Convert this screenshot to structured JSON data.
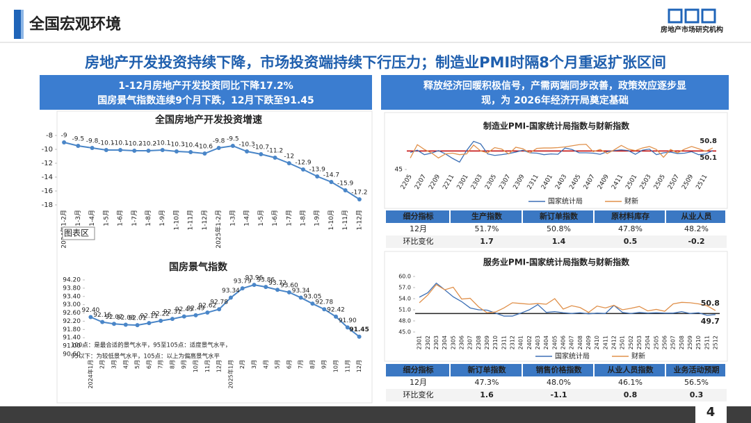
{
  "header": {
    "title": "全国宏观环境",
    "logo_text": "房地产市场研究机构"
  },
  "headline": "房地产开发投资持续下降，市场投资端持续下行压力；制造业PMI时隔8个月重返扩张区间",
  "left_banner": [
    "1-12月房地产开发投资同比下降17.2%",
    "国房景气指数连续9个月下跌，12月下跌至91.45"
  ],
  "right_banner": [
    "释放经济回暖积极信号，产需两端同步改善，政策效应逐步显",
    "现，为 2026年经济开局奠定基础"
  ],
  "chart_data": [
    {
      "type": "line",
      "title": "全国房地产开发投资增速",
      "categories": [
        "2024年1-2月",
        "1-3月",
        "1-4月",
        "1-5月",
        "1-6月",
        "1-7月",
        "1-8月",
        "1-9月",
        "1-10月",
        "1-11月",
        "1-12月",
        "2025年1-2月",
        "1-3月",
        "1-4月",
        "1-5月",
        "1-6月",
        "1-7月",
        "1-8月",
        "1-9月",
        "1-10月",
        "1-11月",
        "1-12月"
      ],
      "values": [
        -9,
        -9.5,
        -9.8,
        -10.1,
        -10.1,
        -10.2,
        -10.2,
        -10.1,
        -10.3,
        -10.4,
        -10.6,
        -9.8,
        -9.5,
        -10.3,
        -10.7,
        -11.2,
        -12,
        -12.9,
        -13.9,
        -14.7,
        -15.9,
        -17.2
      ],
      "color": "#4a86c8",
      "markers": true,
      "data_labels": "all",
      "label_color": "#333333",
      "ylim": [
        -18,
        -8
      ],
      "yticks": [
        -8,
        -10,
        -12,
        -14,
        -16,
        -18
      ],
      "annotations": [
        "图表区"
      ]
    },
    {
      "type": "line",
      "title": "国房景气指数",
      "categories": [
        "2024年1月",
        "2月",
        "3月",
        "4月",
        "5月",
        "6月",
        "7月",
        "8月",
        "9月",
        "10月",
        "11月",
        "12月",
        "2025年1月",
        "2月",
        "3月",
        "4月",
        "5月",
        "6月",
        "7月",
        "8月",
        "9月",
        "10月",
        "11月",
        "12月"
      ],
      "values": [
        92.4,
        92.16,
        92.07,
        92.03,
        92.01,
        92.11,
        92.22,
        92.31,
        92.43,
        92.49,
        92.62,
        92.78,
        93.34,
        93.79,
        93.96,
        93.86,
        93.72,
        93.6,
        93.34,
        93.05,
        92.78,
        92.42,
        91.9,
        91.45
      ],
      "value_labels": [
        "92.40",
        "92.16",
        "92.07",
        "92.03",
        "92.01",
        "92.11",
        "92.22",
        "92.31",
        "92.43",
        "92.49",
        "92.62",
        "92.78",
        "93.34",
        "93.79",
        "93.96",
        "93.86",
        "93.72",
        "93.60",
        "93.34",
        "93.05",
        "92.78",
        "92.42",
        "91.90",
        "91.45"
      ],
      "color": "#4a86c8",
      "markers": true,
      "data_labels": "all",
      "label_color": "#333333",
      "last_label_color": "#e00000",
      "ylim": [
        90.6,
        94.2
      ],
      "yticks": [
        {
          "value": 90.6,
          "label": "90.60"
        },
        {
          "value": 91.0,
          "label": "91.00"
        },
        {
          "value": 91.4,
          "label": "91.40"
        },
        {
          "value": 91.8,
          "label": "91.80"
        },
        {
          "value": 92.2,
          "label": "92.20"
        },
        {
          "value": 92.6,
          "label": "92.60"
        },
        {
          "value": 93.0,
          "label": "93.00"
        },
        {
          "value": 93.4,
          "label": "93.40"
        },
        {
          "value": 93.8,
          "label": "93.80"
        },
        {
          "value": 94.2,
          "label": "94.20"
        }
      ],
      "annotations": [
        "100点：是最合适的景气水平，95至105点：适度景气水平，",
        "95以下：为较低景气水平，105点：以上为偏高景气水平"
      ]
    },
    {
      "type": "line",
      "title": "制造业PMI-国家统计局指数与财新指数",
      "categories": [
        "2205",
        null,
        "2207",
        null,
        "2209",
        null,
        "2211",
        null,
        "2301",
        null,
        "2303",
        null,
        "2305",
        null,
        "2307",
        null,
        "2309",
        null,
        "2311",
        null,
        "2401",
        null,
        "2403",
        null,
        "2405",
        null,
        "2407",
        null,
        "2409",
        null,
        "2411",
        null,
        "2501",
        null,
        "2503",
        null,
        "2505",
        null,
        "2507",
        null,
        "2509",
        null,
        "2511",
        null
      ],
      "series": [
        {
          "name": "国家统计局",
          "color": "#3c6fb5",
          "values": [
            49.6,
            50.2,
            49.0,
            49.4,
            50.1,
            49.2,
            48.0,
            47.0,
            50.1,
            52.6,
            51.9,
            49.2,
            48.8,
            49.0,
            49.3,
            49.7,
            50.2,
            49.5,
            49.4,
            49.0,
            49.2,
            49.1,
            50.8,
            50.4,
            49.5,
            49.5,
            49.4,
            49.1,
            49.8,
            50.1,
            50.3,
            50.1,
            49.1,
            50.2,
            50.5,
            49.0,
            49.5,
            49.7,
            49.3,
            49.4,
            49.8,
            49.0,
            49.2,
            50.1
          ]
        },
        {
          "name": "财新",
          "color": "#e0904a",
          "values": [
            48.1,
            51.7,
            50.4,
            49.5,
            48.1,
            49.2,
            49.4,
            49.0,
            49.2,
            51.6,
            50.0,
            49.5,
            50.9,
            50.5,
            49.2,
            51.0,
            50.6,
            49.5,
            50.7,
            50.8,
            50.8,
            50.9,
            51.1,
            51.4,
            51.7,
            51.8,
            49.8,
            50.4,
            49.3,
            50.3,
            51.5,
            50.5,
            50.1,
            50.8,
            51.2,
            50.4,
            48.3,
            50.4,
            49.5,
            50.5,
            51.2,
            50.6,
            49.9,
            50.8
          ]
        }
      ],
      "reference": 50,
      "reference_color": "#c00000",
      "data_labels": "last",
      "legend": "bottom",
      "ylim": [
        45,
        54
      ],
      "yticks": [
        45
      ]
    },
    {
      "type": "line",
      "title": "服务业PMI-国家统计局指数与财新指数",
      "categories": [
        "2301",
        "2302",
        "2303",
        "2304",
        "2305",
        "2306",
        "2307",
        "2308",
        "2309",
        "2310",
        "2311",
        "2312",
        "2401",
        "2402",
        "2403",
        "2404",
        "2405",
        "2406",
        "2407",
        "2408",
        "2409",
        "2410",
        "2411",
        "2412",
        "2501",
        "2502",
        "2503",
        "2504",
        "2505",
        "2506",
        "2507",
        "2508",
        "2509",
        "2510",
        "2511",
        "2512"
      ],
      "series": [
        {
          "name": "国家统计局",
          "color": "#3c6fb5",
          "values": [
            54.4,
            55.6,
            58.2,
            56.4,
            54.5,
            53.2,
            51.5,
            51.0,
            50.9,
            50.1,
            49.3,
            49.3,
            50.1,
            51.0,
            52.4,
            50.3,
            50.5,
            50.2,
            50.0,
            50.2,
            49.9,
            50.1,
            50.0,
            52.2,
            50.3,
            50.0,
            50.3,
            50.1,
            50.2,
            50.1,
            50.1,
            50.5,
            50.0,
            50.2,
            49.5,
            49.7
          ]
        },
        {
          "name": "财新",
          "color": "#e0904a",
          "values": [
            52.9,
            55.0,
            57.8,
            56.4,
            57.1,
            53.9,
            54.1,
            51.8,
            50.2,
            50.4,
            51.5,
            52.9,
            52.7,
            52.5,
            52.7,
            52.5,
            54.0,
            51.2,
            52.1,
            51.6,
            50.3,
            52.0,
            51.5,
            52.2,
            51.0,
            51.4,
            51.9,
            50.7,
            51.1,
            50.6,
            52.6,
            53.0,
            52.9,
            52.6,
            52.1,
            50.8
          ]
        }
      ],
      "reference": 50,
      "reference_color": "#222222",
      "data_labels": "last",
      "legend": "bottom",
      "ylim": [
        45,
        60
      ],
      "yticks": [
        {
          "value": 45,
          "label": "45.0"
        },
        {
          "value": 48,
          "label": "48.0"
        },
        {
          "value": 51,
          "label": "51.0"
        },
        {
          "value": 54,
          "label": "54.0"
        },
        {
          "value": 57,
          "label": "57.0"
        },
        {
          "value": 60,
          "label": "60.0"
        }
      ]
    }
  ],
  "tables": [
    {
      "header": [
        "细分指标",
        "生产指数",
        "新订单指数",
        "原材料库存",
        "从业人员"
      ],
      "rows": [
        [
          "12月",
          "51.7%",
          "50.8%",
          "47.8%",
          "48.2%"
        ],
        [
          "环比变化",
          "1.7",
          "1.4",
          "0.5",
          "-0.2"
        ]
      ]
    },
    {
      "header": [
        "细分指标",
        "新订单指数",
        "销售价格指数",
        "从业人员指数",
        "业务活动预期"
      ],
      "rows": [
        [
          "12月",
          "47.3%",
          "48.0%",
          "46.1%",
          "56.5%"
        ],
        [
          "环比变化",
          "1.6",
          "-1.1",
          "0.8",
          "0.3"
        ]
      ]
    }
  ],
  "page_number": "4"
}
